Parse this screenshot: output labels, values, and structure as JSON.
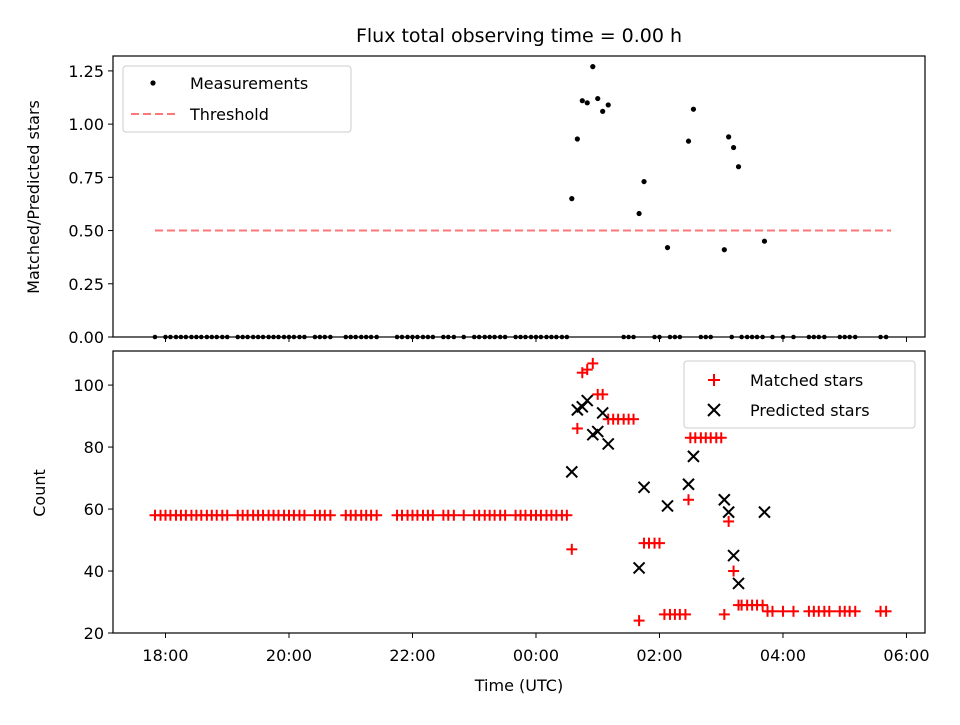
{
  "chart_data": [
    {
      "type": "scatter",
      "title": "Flux total observing time = 0.00 h",
      "xlabel": "",
      "ylabel": "Matched/Predicted stars",
      "xlim": [
        17.15,
        30.3
      ],
      "ylim": [
        0.0,
        1.32
      ],
      "yticks": [
        0.0,
        0.25,
        0.5,
        0.75,
        1.0,
        1.25
      ],
      "ytick_labels": [
        "0.00",
        "0.25",
        "0.50",
        "0.75",
        "1.00",
        "1.25"
      ],
      "legend": {
        "position": "top-left",
        "entries": [
          "Measurements",
          "Threshold"
        ]
      },
      "series": [
        {
          "name": "Measurements",
          "marker": "dot",
          "color": "#000000",
          "zeros_x": [
            17.83,
            18.0,
            18.08,
            18.17,
            18.25,
            18.33,
            18.42,
            18.5,
            18.58,
            18.67,
            18.75,
            18.83,
            18.92,
            19.0,
            19.17,
            19.25,
            19.33,
            19.42,
            19.5,
            19.58,
            19.67,
            19.75,
            19.83,
            19.92,
            20.0,
            20.08,
            20.17,
            20.25,
            20.42,
            20.5,
            20.58,
            20.67,
            20.92,
            21.0,
            21.08,
            21.17,
            21.25,
            21.33,
            21.42,
            21.75,
            21.83,
            21.92,
            22.0,
            22.08,
            22.17,
            22.25,
            22.33,
            22.5,
            22.58,
            22.67,
            22.83,
            23.0,
            23.08,
            23.17,
            23.25,
            23.33,
            23.42,
            23.5,
            23.67,
            23.75,
            23.83,
            23.92,
            24.0,
            24.08,
            24.17,
            24.25,
            24.33,
            24.42,
            24.5,
            25.42,
            25.5,
            25.58,
            25.92,
            26.0,
            26.17,
            26.25,
            26.33,
            26.67,
            26.75,
            26.83,
            27.17,
            27.33,
            27.42,
            27.5,
            27.58,
            27.67,
            27.83,
            28.0,
            28.17,
            28.42,
            28.5,
            28.58,
            28.67,
            28.92,
            29.0,
            29.08,
            29.17,
            29.58,
            29.67
          ],
          "points": [
            [
              24.58,
              0.65
            ],
            [
              24.67,
              0.93
            ],
            [
              24.75,
              1.11
            ],
            [
              24.83,
              1.1
            ],
            [
              24.92,
              1.27
            ],
            [
              25.0,
              1.12
            ],
            [
              25.08,
              1.06
            ],
            [
              25.17,
              1.09
            ],
            [
              25.67,
              0.58
            ],
            [
              25.75,
              0.73
            ],
            [
              26.13,
              0.42
            ],
            [
              26.47,
              0.92
            ],
            [
              26.55,
              1.07
            ],
            [
              27.05,
              0.41
            ],
            [
              27.12,
              0.94
            ],
            [
              27.2,
              0.89
            ],
            [
              27.28,
              0.8
            ],
            [
              27.7,
              0.45
            ]
          ]
        },
        {
          "name": "Threshold",
          "style": "dashed",
          "color": "#ff7777",
          "x": [
            17.83,
            29.75
          ],
          "y": [
            0.5,
            0.5
          ]
        }
      ]
    },
    {
      "type": "scatter",
      "title": "",
      "xlabel": "Time (UTC)",
      "ylabel": "Count",
      "xlim": [
        17.15,
        30.3
      ],
      "ylim": [
        20,
        111
      ],
      "xticks": [
        18,
        20,
        22,
        24,
        26,
        28,
        30
      ],
      "xtick_labels": [
        "18:00",
        "20:00",
        "22:00",
        "00:00",
        "02:00",
        "04:00",
        "06:00"
      ],
      "yticks": [
        20,
        40,
        60,
        80,
        100
      ],
      "ytick_labels": [
        "20",
        "40",
        "60",
        "80",
        "100"
      ],
      "legend": {
        "position": "top-right",
        "entries": [
          "Matched stars",
          "Predicted stars"
        ]
      },
      "series": [
        {
          "name": "Matched stars",
          "marker": "plus",
          "color": "#ff0000",
          "flat_runs": [
            {
              "y": 58,
              "x": [
                17.83,
                17.92,
                18.0,
                18.08,
                18.17,
                18.25,
                18.33,
                18.42,
                18.5,
                18.58,
                18.67,
                18.75,
                18.83,
                18.92,
                19.0,
                19.17,
                19.25,
                19.33,
                19.42,
                19.5,
                19.58,
                19.67,
                19.75,
                19.83,
                19.92,
                20.0,
                20.08,
                20.17,
                20.25,
                20.42,
                20.5,
                20.58,
                20.67,
                20.92,
                21.0,
                21.08,
                21.17,
                21.25,
                21.33,
                21.42,
                21.75,
                21.83,
                21.92,
                22.0,
                22.08,
                22.17,
                22.25,
                22.33,
                22.5,
                22.58,
                22.67,
                22.83,
                23.0,
                23.08,
                23.17,
                23.25,
                23.33,
                23.42,
                23.5,
                23.67,
                23.75,
                23.83,
                23.92,
                24.0,
                24.08,
                24.17,
                24.25,
                24.33,
                24.42,
                24.5
              ]
            },
            {
              "y": 89,
              "x": [
                25.17,
                25.25,
                25.33,
                25.42,
                25.5,
                25.58
              ]
            },
            {
              "y": 49,
              "x": [
                25.75,
                25.83,
                25.92,
                26.0
              ]
            },
            {
              "y": 26,
              "x": [
                26.08,
                26.17,
                26.25,
                26.33,
                26.42
              ]
            },
            {
              "y": 83,
              "x": [
                26.5,
                26.58,
                26.67,
                26.75,
                26.83,
                26.92,
                27.0
              ]
            },
            {
              "y": 29,
              "x": [
                27.33,
                27.42,
                27.5,
                27.58,
                27.67
              ]
            },
            {
              "y": 27,
              "x": [
                27.75,
                27.83,
                28.0,
                28.17,
                28.42,
                28.5,
                28.58,
                28.67,
                28.75,
                28.92,
                29.0,
                29.08,
                29.17,
                29.58,
                29.67
              ]
            }
          ],
          "points": [
            [
              24.58,
              47
            ],
            [
              24.67,
              86
            ],
            [
              24.75,
              104
            ],
            [
              24.83,
              105
            ],
            [
              24.92,
              107
            ],
            [
              25.0,
              97
            ],
            [
              25.08,
              97
            ],
            [
              25.67,
              24
            ],
            [
              26.47,
              63
            ],
            [
              27.05,
              26
            ],
            [
              27.12,
              56
            ],
            [
              27.2,
              40
            ],
            [
              27.28,
              29
            ]
          ]
        },
        {
          "name": "Predicted stars",
          "marker": "x",
          "color": "#000000",
          "points": [
            [
              24.58,
              72
            ],
            [
              24.67,
              92
            ],
            [
              24.75,
              93
            ],
            [
              24.83,
              95
            ],
            [
              24.92,
              84
            ],
            [
              25.0,
              85
            ],
            [
              25.08,
              91
            ],
            [
              25.17,
              81
            ],
            [
              25.67,
              41
            ],
            [
              25.75,
              67
            ],
            [
              26.13,
              61
            ],
            [
              26.47,
              68
            ],
            [
              26.55,
              77
            ],
            [
              27.05,
              63
            ],
            [
              27.12,
              59
            ],
            [
              27.2,
              45
            ],
            [
              27.28,
              36
            ],
            [
              27.7,
              59
            ]
          ]
        }
      ]
    }
  ]
}
